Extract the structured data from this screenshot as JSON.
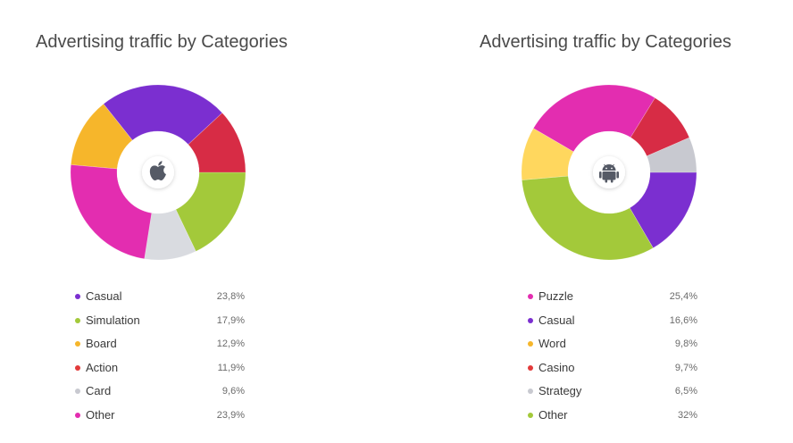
{
  "chart_data": [
    {
      "type": "pie",
      "title": "Advertising traffic by Categories",
      "platform_icon": "apple-icon",
      "categories": [
        "Casual",
        "Simulation",
        "Board",
        "Action",
        "Card",
        "Other"
      ],
      "values": [
        23.8,
        17.9,
        12.9,
        11.9,
        9.6,
        23.9
      ],
      "value_labels": [
        "23,8%",
        "17,9%",
        "12,9%",
        "11,9%",
        "9,6%",
        "23,9%"
      ],
      "colors": [
        "#7b2fd0",
        "#a3c93a",
        "#f6b62b",
        "#e23a3a",
        "#c8c9d0",
        "#e32db0"
      ],
      "slices": [
        {
          "category": "Simulation",
          "value": 17.9,
          "color": "#a3c93a"
        },
        {
          "category": "Card",
          "value": 9.6,
          "color": "#d9dbe0"
        },
        {
          "category": "Other",
          "value": 23.9,
          "color": "#e32db0"
        },
        {
          "category": "Board",
          "value": 12.9,
          "color": "#f6b62b"
        },
        {
          "category": "Casual",
          "value": 23.8,
          "color": "#7b2fd0"
        },
        {
          "category": "Action",
          "value": 11.9,
          "color": "#d72c45"
        }
      ],
      "legend_position": "bottom"
    },
    {
      "type": "pie",
      "title": "Advertising traffic by Categories",
      "platform_icon": "android-icon",
      "categories": [
        "Puzzle",
        "Casual",
        "Word",
        "Casino",
        "Strategy",
        "Other"
      ],
      "values": [
        25.4,
        16.6,
        9.8,
        9.7,
        6.5,
        32
      ],
      "value_labels": [
        "25,4%",
        "16,6%",
        "9,8%",
        "9,7%",
        "6,5%",
        "32%"
      ],
      "colors": [
        "#e32db0",
        "#7b2fd0",
        "#f6b62b",
        "#e23a3a",
        "#c8c9d0",
        "#a3c93a"
      ],
      "slices": [
        {
          "category": "Casual",
          "value": 16.6,
          "color": "#7b2fd0"
        },
        {
          "category": "Other",
          "value": 32,
          "color": "#a3c93a"
        },
        {
          "category": "Word",
          "value": 9.8,
          "color": "#ffd75e"
        },
        {
          "category": "Puzzle",
          "value": 25.4,
          "color": "#e32db0"
        },
        {
          "category": "Casino",
          "value": 9.7,
          "color": "#d72c45"
        },
        {
          "category": "Strategy",
          "value": 6.5,
          "color": "#c8c9d0"
        }
      ],
      "legend_position": "bottom"
    }
  ]
}
